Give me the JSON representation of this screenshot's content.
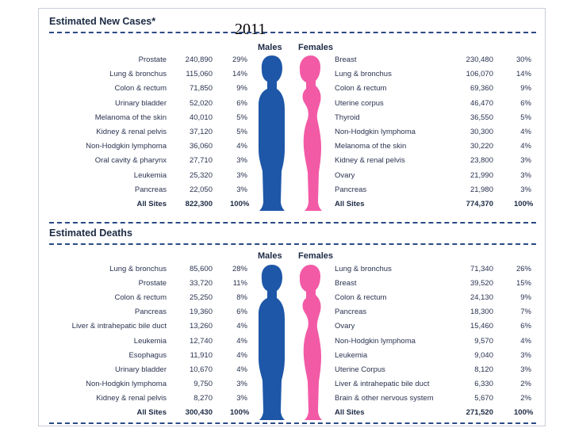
{
  "colors": {
    "male": "#1e57a8",
    "female": "#f25aa6",
    "dash": "#2b4a85",
    "text": "#1c2a44"
  },
  "year": "2011",
  "cases": {
    "title": "Estimated New Cases*",
    "males_label": "Males",
    "females_label": "Females",
    "rows": [
      {
        "m_site": "Prostate",
        "m_num": "240,890",
        "m_pct": "29%",
        "f_site": "Breast",
        "f_num": "230,480",
        "f_pct": "30%"
      },
      {
        "m_site": "Lung & bronchus",
        "m_num": "115,060",
        "m_pct": "14%",
        "f_site": "Lung & bronchus",
        "f_num": "106,070",
        "f_pct": "14%"
      },
      {
        "m_site": "Colon & rectum",
        "m_num": "71,850",
        "m_pct": "9%",
        "f_site": "Colon & rectum",
        "f_num": "69,360",
        "f_pct": "9%"
      },
      {
        "m_site": "Urinary bladder",
        "m_num": "52,020",
        "m_pct": "6%",
        "f_site": "Uterine corpus",
        "f_num": "46,470",
        "f_pct": "6%"
      },
      {
        "m_site": "Melanoma of the skin",
        "m_num": "40,010",
        "m_pct": "5%",
        "f_site": "Thyroid",
        "f_num": "36,550",
        "f_pct": "5%"
      },
      {
        "m_site": "Kidney & renal pelvis",
        "m_num": "37,120",
        "m_pct": "5%",
        "f_site": "Non-Hodgkin lymphoma",
        "f_num": "30,300",
        "f_pct": "4%"
      },
      {
        "m_site": "Non-Hodgkin lymphoma",
        "m_num": "36,060",
        "m_pct": "4%",
        "f_site": "Melanoma of the skin",
        "f_num": "30,220",
        "f_pct": "4%"
      },
      {
        "m_site": "Oral cavity & pharynx",
        "m_num": "27,710",
        "m_pct": "3%",
        "f_site": "Kidney & renal pelvis",
        "f_num": "23,800",
        "f_pct": "3%"
      },
      {
        "m_site": "Leukemia",
        "m_num": "25,320",
        "m_pct": "3%",
        "f_site": "Ovary",
        "f_num": "21,990",
        "f_pct": "3%"
      },
      {
        "m_site": "Pancreas",
        "m_num": "22,050",
        "m_pct": "3%",
        "f_site": "Pancreas",
        "f_num": "21,980",
        "f_pct": "3%"
      }
    ],
    "total": {
      "m_site": "All Sites",
      "m_num": "822,300",
      "m_pct": "100%",
      "f_site": "All Sites",
      "f_num": "774,370",
      "f_pct": "100%"
    }
  },
  "deaths": {
    "title": "Estimated Deaths",
    "males_label": "Males",
    "females_label": "Females",
    "rows": [
      {
        "m_site": "Lung & bronchus",
        "m_num": "85,600",
        "m_pct": "28%",
        "f_site": "Lung & bronchus",
        "f_num": "71,340",
        "f_pct": "26%"
      },
      {
        "m_site": "Prostate",
        "m_num": "33,720",
        "m_pct": "11%",
        "f_site": "Breast",
        "f_num": "39,520",
        "f_pct": "15%"
      },
      {
        "m_site": "Colon & rectum",
        "m_num": "25,250",
        "m_pct": "8%",
        "f_site": "Colon & rectum",
        "f_num": "24,130",
        "f_pct": "9%"
      },
      {
        "m_site": "Pancreas",
        "m_num": "19,360",
        "m_pct": "6%",
        "f_site": "Pancreas",
        "f_num": "18,300",
        "f_pct": "7%"
      },
      {
        "m_site": "Liver & intrahepatic bile duct",
        "m_num": "13,260",
        "m_pct": "4%",
        "f_site": "Ovary",
        "f_num": "15,460",
        "f_pct": "6%"
      },
      {
        "m_site": "Leukemia",
        "m_num": "12,740",
        "m_pct": "4%",
        "f_site": "Non-Hodgkin lymphoma",
        "f_num": "9,570",
        "f_pct": "4%"
      },
      {
        "m_site": "Esophagus",
        "m_num": "11,910",
        "m_pct": "4%",
        "f_site": "Leukemia",
        "f_num": "9,040",
        "f_pct": "3%"
      },
      {
        "m_site": "Urinary bladder",
        "m_num": "10,670",
        "m_pct": "4%",
        "f_site": "Uterine Corpus",
        "f_num": "8,120",
        "f_pct": "3%"
      },
      {
        "m_site": "Non-Hodgkin lymphoma",
        "m_num": "9,750",
        "m_pct": "3%",
        "f_site": "Liver & intrahepatic bile duct",
        "f_num": "6,330",
        "f_pct": "2%"
      },
      {
        "m_site": "Kidney & renal pelvis",
        "m_num": "8,270",
        "m_pct": "3%",
        "f_site": "Brain & other nervous system",
        "f_num": "5,670",
        "f_pct": "2%"
      }
    ],
    "total": {
      "m_site": "All Sites",
      "m_num": "300,430",
      "m_pct": "100%",
      "f_site": "All Sites",
      "f_num": "271,520",
      "f_pct": "100%"
    }
  }
}
